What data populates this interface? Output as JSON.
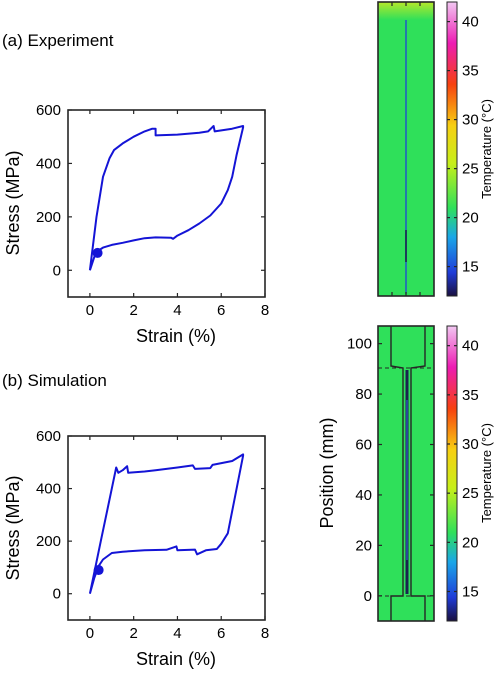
{
  "panels": {
    "a": "(a) Experiment",
    "b": "(b) Simulation"
  },
  "colors": {
    "curve": "#1414d6",
    "marker": "#1414d6",
    "specimen_green": "#2fe05a",
    "dark_line": "#1a2350",
    "outline": "#262626"
  },
  "chart_data": [
    {
      "type": "line",
      "id": "experiment-stress-strain",
      "xlabel": "Strain (%)",
      "ylabel": "Stress (MPa)",
      "xlim": [
        -1,
        8
      ],
      "ylim": [
        -100,
        600
      ],
      "xticks": [
        0,
        2,
        4,
        6,
        8
      ],
      "yticks": [
        0,
        200,
        400,
        600
      ],
      "grid": false,
      "series": [
        {
          "x": [
            0,
            0.3,
            0.6,
            0.9,
            1.1,
            1.5,
            2.0,
            2.5,
            2.85,
            3.0,
            3.0,
            4.0,
            5.0,
            5.4,
            5.65,
            5.7,
            6.5,
            7.0,
            7.0,
            6.7,
            6.5,
            6.3,
            6.0,
            5.5,
            5.0,
            4.5,
            4.0,
            3.8,
            3.7,
            3.0,
            2.5,
            2.0,
            1.5,
            1.0,
            0.6,
            0.35,
            0.2,
            0
          ],
          "y": [
            0,
            200,
            350,
            420,
            450,
            475,
            500,
            520,
            530,
            530,
            505,
            508,
            515,
            520,
            540,
            520,
            530,
            540,
            535,
            430,
            350,
            300,
            250,
            205,
            175,
            150,
            130,
            118,
            122,
            123,
            120,
            112,
            103,
            95,
            85,
            72,
            50,
            0
          ]
        }
      ],
      "markers": [
        {
          "x": 0.35,
          "y": 65
        }
      ]
    },
    {
      "type": "line",
      "id": "simulation-stress-strain",
      "xlabel": "Strain (%)",
      "ylabel": "Stress (MPa)",
      "xlim": [
        -1,
        8
      ],
      "ylim": [
        -100,
        600
      ],
      "xticks": [
        0,
        2,
        4,
        6,
        8
      ],
      "yticks": [
        0,
        200,
        400,
        600
      ],
      "grid": false,
      "series": [
        {
          "x": [
            0,
            0.5,
            1.0,
            1.2,
            1.3,
            1.5,
            1.7,
            1.75,
            2.5,
            3.0,
            3.5,
            4.0,
            4.7,
            4.8,
            5.5,
            5.6,
            6.5,
            7.0,
            7.0,
            6.3,
            6.0,
            5.8,
            5.3,
            4.9,
            4.8,
            4.0,
            3.95,
            3.5,
            2.5,
            1.5,
            1.0,
            0.6,
            0.4,
            0.2,
            0
          ],
          "y": [
            0,
            200,
            400,
            480,
            460,
            470,
            485,
            460,
            465,
            470,
            475,
            480,
            488,
            475,
            478,
            490,
            505,
            530,
            525,
            230,
            190,
            170,
            165,
            150,
            168,
            165,
            180,
            167,
            165,
            160,
            155,
            130,
            105,
            60,
            0
          ]
        }
      ],
      "markers": [
        {
          "x": 0.4,
          "y": 90
        }
      ]
    }
  ],
  "thermal_maps": {
    "experiment": {
      "colorbar_label": "Temperature (°C)",
      "colorbar_ticks": [
        15,
        20,
        25,
        30,
        35,
        40
      ],
      "clim": [
        12,
        42
      ],
      "colormap": "jet-pink"
    },
    "simulation": {
      "ylabel": "Position (mm)",
      "yticks": [
        0,
        20,
        40,
        60,
        80,
        100
      ],
      "ylim": [
        -10,
        107
      ],
      "colorbar_label": "Temperature (°C)",
      "colorbar_ticks": [
        15,
        20,
        25,
        30,
        35,
        40
      ],
      "clim": [
        12,
        42
      ],
      "colormap": "jet-pink"
    }
  }
}
